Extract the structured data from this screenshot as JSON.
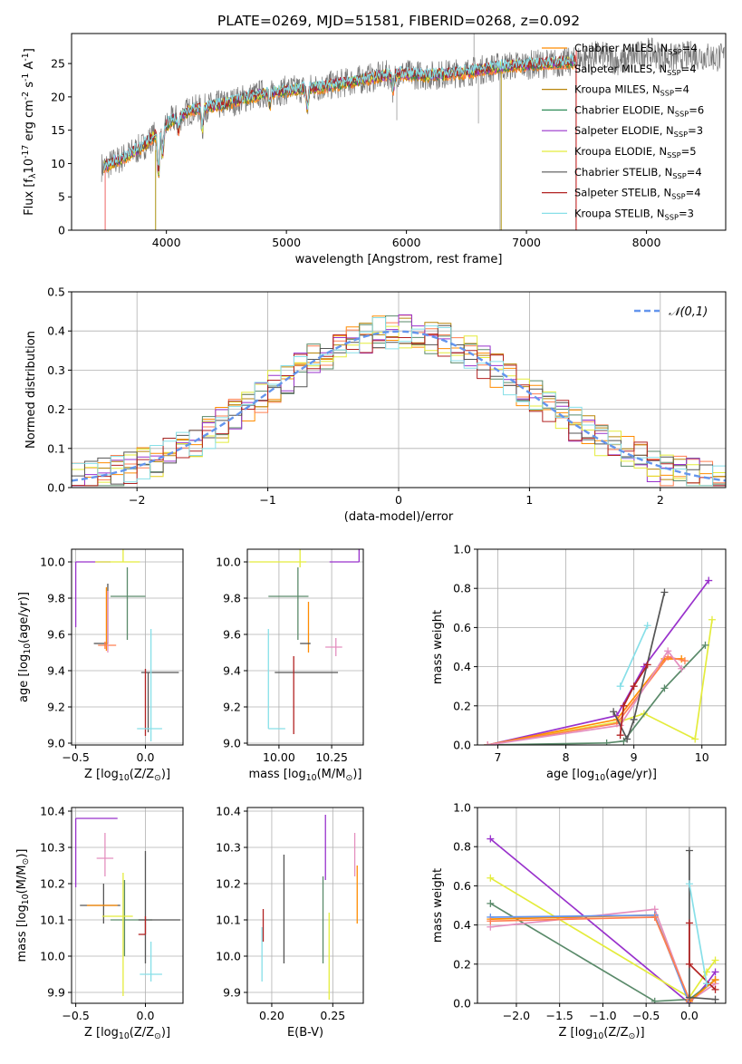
{
  "chart_data": [
    {
      "id": "spectrum",
      "type": "line",
      "title": "PLATE=0269, MJD=51581, FIBERID=0268, z=0.092",
      "xlabel": "wavelength [Angstrom, rest frame]",
      "ylabel": "Flux [f$_\\lambda$10$^{-17}$ erg cm$^{-2}$ s$^{-1}$ A$^{-1}$]",
      "xlim": [
        3210,
        8660
      ],
      "ylim": [
        0,
        29.5
      ],
      "xticks": [
        4000,
        5000,
        6000,
        7000,
        8000
      ],
      "yticks": [
        0,
        5,
        10,
        15,
        20,
        25
      ],
      "grid": false,
      "legend_position": "top-right",
      "continuum": {
        "x": [
          3480,
          3600,
          3800,
          3950,
          4050,
          4200,
          4500,
          4800,
          5000,
          5300,
          5600,
          5900,
          6200,
          6500,
          6800,
          7000,
          7200,
          7420
        ],
        "y": [
          9.5,
          10.5,
          12.5,
          15,
          16.5,
          18,
          19,
          20.5,
          21,
          21.5,
          22.5,
          23.5,
          23.2,
          23.7,
          24.6,
          24.8,
          25,
          25.3
        ]
      },
      "data_extension": {
        "x": [
          7420,
          7600,
          7800,
          8000,
          8200,
          8400,
          8600
        ],
        "y": [
          25.5,
          26.3,
          25.2,
          26.8,
          25.8,
          26.3,
          25.9
        ]
      },
      "dips": [
        {
          "x": 3934,
          "depth": 6
        },
        {
          "x": 3969,
          "depth": 4
        },
        {
          "x": 4102,
          "depth": 2
        },
        {
          "x": 4300,
          "depth": 3
        },
        {
          "x": 4861,
          "depth": 2
        },
        {
          "x": 5175,
          "depth": 3
        },
        {
          "x": 5890,
          "depth": 2.5
        }
      ],
      "spikes": [
        {
          "x": 3910,
          "y": 0
        },
        {
          "x": 5920,
          "y": 16.5
        },
        {
          "x": 6563,
          "y": 29.5
        },
        {
          "x": 6600,
          "y": 16
        },
        {
          "x": 6780,
          "y": 0
        },
        {
          "x": 7410,
          "y": 0
        }
      ],
      "series": [
        {
          "name": "Chabrier MILES, N$_{SSP}$=4",
          "color": "#ff8c00"
        },
        {
          "name": "Salpeter MILES, N$_{SSP}$=4",
          "color": "#ff7f50"
        },
        {
          "name": "Kroupa MILES, N$_{SSP}$=4",
          "color": "#b8860b"
        },
        {
          "name": "Chabrier ELODIE, N$_{SSP}$=6",
          "color": "#2e8b57"
        },
        {
          "name": "Salpeter ELODIE, N$_{SSP}$=3",
          "color": "#9932cc"
        },
        {
          "name": "Kroupa ELODIE, N$_{SSP}$=5",
          "color": "#e4ec3c"
        },
        {
          "name": "Chabrier STELIB, N$_{SSP}$=4",
          "color": "#555555"
        },
        {
          "name": "Salpeter STELIB, N$_{SSP}$=4",
          "color": "#b22222"
        },
        {
          "name": "Kroupa STELIB, N$_{SSP}$=3",
          "color": "#87dfe8"
        }
      ]
    },
    {
      "id": "residuals",
      "type": "histogram",
      "xlabel": "(data-model)/error",
      "ylabel": "Normed distribution",
      "xlim": [
        -2.5,
        2.5
      ],
      "ylim": [
        0,
        0.5
      ],
      "xticks": [
        -2,
        -1,
        0,
        1,
        2
      ],
      "yticks": [
        0.0,
        0.1,
        0.2,
        0.3,
        0.4,
        0.5
      ],
      "grid": true,
      "legend_position": "top-right",
      "reference_curve": {
        "name": "$\\mathcal{N}(0,1)$",
        "color": "#6495ed",
        "style": "dashed"
      },
      "bin_edges_range": [
        -2.5,
        2.5
      ],
      "bin_count": 50,
      "hist_colors": [
        "#ff8c00",
        "#ff7f50",
        "#b8860b",
        "#5a8a6a",
        "#9932cc",
        "#e4ec3c",
        "#555555",
        "#b22222",
        "#87dfe8"
      ]
    },
    {
      "id": "age_vs_Z",
      "type": "errorbar",
      "xlabel": "Z [log$_{10}$(Z/Z$_\\odot$)]",
      "ylabel": "age  [log$_{10}$(age/yr)]",
      "xlim": [
        -0.53,
        0.27
      ],
      "ylim": [
        8.99,
        10.07
      ],
      "xticks": [
        -0.5,
        0.0
      ],
      "yticks": [
        9.0,
        9.2,
        9.4,
        9.6,
        9.8,
        10.0
      ],
      "grid": true,
      "points": [
        {
          "color": "#9932cc",
          "x": -0.5,
          "y": 10.0,
          "xerr": [
            0.0,
            0.25
          ],
          "yerr": [
            0.36,
            0.0
          ]
        },
        {
          "color": "#e4ec3c",
          "x": -0.16,
          "y": 10.0,
          "xerr": [
            0.2,
            0.12
          ],
          "yerr": [
            0.0,
            0.07
          ]
        },
        {
          "color": "#5a8a6a",
          "x": -0.13,
          "y": 9.81,
          "xerr": [
            0.12,
            0.13
          ],
          "yerr": [
            0.24,
            0.16
          ]
        },
        {
          "color": "#555555",
          "x": -0.27,
          "y": 9.55,
          "xerr": [
            0.1,
            0.0
          ],
          "yerr": [
            0.0,
            0.33
          ]
        },
        {
          "color": "#ff8c00",
          "x": -0.28,
          "y": 9.55,
          "xerr": [
            0.0,
            0.0
          ],
          "yerr": [
            0.04,
            0.31
          ]
        },
        {
          "color": "#ff7f50",
          "x": -0.29,
          "y": 9.54,
          "xerr": [
            0.05,
            0.08
          ],
          "yerr": [
            0.02,
            0.02
          ]
        },
        {
          "color": "#e48fbf",
          "x": -0.27,
          "y": 9.54,
          "xerr": [
            0.0,
            0.0
          ],
          "yerr": [
            0.04,
            0.3
          ]
        },
        {
          "color": "#555555",
          "x": 0.02,
          "y": 9.39,
          "xerr": [
            0.05,
            0.22
          ],
          "yerr": [
            0.33,
            0.0
          ]
        },
        {
          "color": "#b22222",
          "x": 0.0,
          "y": 9.2,
          "xerr": [
            0.0,
            0.0
          ],
          "yerr": [
            0.16,
            0.21
          ]
        },
        {
          "color": "#87dfe8",
          "x": 0.04,
          "y": 9.08,
          "xerr": [
            0.1,
            0.08
          ],
          "yerr": [
            0.07,
            0.55
          ]
        }
      ]
    },
    {
      "id": "age_vs_mass",
      "type": "errorbar",
      "xlabel": "mass [log$_{10}$(M/M$_\\odot$)]",
      "ylabel": "",
      "xlim": [
        9.85,
        10.4
      ],
      "ylim": [
        8.99,
        10.07
      ],
      "xticks": [
        10.0,
        10.25
      ],
      "xticklabels": [
        "10.00",
        "10.25"
      ],
      "yticks": [
        9.0,
        9.2,
        9.4,
        9.6,
        9.8,
        10.0
      ],
      "grid": true,
      "points": [
        {
          "color": "#9932cc",
          "x": 10.38,
          "y": 10.0,
          "xerr": [
            0.14,
            0.0
          ],
          "yerr": [
            0.0,
            0.36
          ]
        },
        {
          "color": "#e4ec3c",
          "x": 10.1,
          "y": 10.0,
          "xerr": [
            0.24,
            0.03
          ],
          "yerr": [
            0.03,
            0.07
          ]
        },
        {
          "color": "#5a8a6a",
          "x": 10.09,
          "y": 9.81,
          "xerr": [
            0.14,
            0.05
          ],
          "yerr": [
            0.24,
            0.16
          ]
        },
        {
          "color": "#e48fbf",
          "x": 10.27,
          "y": 9.53,
          "xerr": [
            0.05,
            0.03
          ],
          "yerr": [
            0.05,
            0.05
          ]
        },
        {
          "color": "#ff8c00",
          "x": 10.14,
          "y": 9.55,
          "xerr": [
            0.0,
            0.0
          ],
          "yerr": [
            0.05,
            0.23
          ]
        },
        {
          "color": "#555555",
          "x": 10.15,
          "y": 9.55,
          "xerr": [
            0.05,
            0.0
          ],
          "yerr": [
            0.0,
            0.0
          ]
        },
        {
          "color": "#555555",
          "x": 10.1,
          "y": 9.39,
          "xerr": [
            0.12,
            0.18
          ],
          "yerr": [
            0.0,
            0.0
          ]
        },
        {
          "color": "#b22222",
          "x": 10.07,
          "y": 9.29,
          "xerr": [
            0.0,
            0.0
          ],
          "yerr": [
            0.24,
            0.19
          ]
        },
        {
          "color": "#87dfe8",
          "x": 9.95,
          "y": 9.08,
          "xerr": [
            0.0,
            0.08
          ],
          "yerr": [
            0.0,
            0.55
          ]
        }
      ]
    },
    {
      "id": "weight_vs_age",
      "type": "line",
      "xlabel": "age  [log$_{10}$(age/yr)]",
      "ylabel": "mass weight",
      "xlim": [
        6.7,
        10.35
      ],
      "ylim": [
        0,
        1.0
      ],
      "xticks": [
        7,
        8,
        9,
        10
      ],
      "yticks": [
        0.0,
        0.2,
        0.4,
        0.6,
        0.8,
        1.0
      ],
      "grid": true,
      "series": [
        {
          "color": "#9932cc",
          "x": [
            6.85,
            8.75,
            9.15,
            10.1
          ],
          "y": [
            0.0,
            0.15,
            0.4,
            0.84
          ]
        },
        {
          "color": "#e4ec3c",
          "x": [
            6.85,
            8.8,
            9.15,
            9.9,
            10.15
          ],
          "y": [
            0.0,
            0.12,
            0.16,
            0.03,
            0.64
          ]
        },
        {
          "color": "#5a8a6a",
          "x": [
            6.85,
            8.6,
            8.85,
            9.45,
            10.05
          ],
          "y": [
            0.0,
            0.01,
            0.02,
            0.29,
            0.51
          ]
        },
        {
          "color": "#ff8c00",
          "x": [
            6.85,
            8.75,
            9.45,
            9.7
          ],
          "y": [
            0.0,
            0.13,
            0.44,
            0.44
          ]
        },
        {
          "color": "#ff7f50",
          "x": [
            6.85,
            8.75,
            9.5,
            9.75
          ],
          "y": [
            0.0,
            0.11,
            0.45,
            0.43
          ]
        },
        {
          "color": "#e48fbf",
          "x": [
            6.85,
            8.8,
            9.5,
            9.7
          ],
          "y": [
            0.0,
            0.1,
            0.48,
            0.39
          ]
        },
        {
          "color": "#555555",
          "x": [
            8.7,
            8.9,
            9.0,
            9.45
          ],
          "y": [
            0.17,
            0.03,
            0.13,
            0.78
          ]
        },
        {
          "color": "#b22222",
          "x": [
            8.8,
            8.85,
            9.0,
            9.2
          ],
          "y": [
            0.05,
            0.2,
            0.3,
            0.41
          ]
        },
        {
          "color": "#87dfe8",
          "x": [
            8.8,
            9.2
          ],
          "y": [
            0.3,
            0.61
          ]
        }
      ]
    },
    {
      "id": "mass_vs_Z",
      "type": "errorbar",
      "xlabel": "Z [log$_{10}$(Z/Z$_\\odot$)]",
      "ylabel": "mass [log$_{10}$(M/M$_\\odot$)]",
      "xlim": [
        -0.53,
        0.27
      ],
      "ylim": [
        9.87,
        10.41
      ],
      "xticks": [
        -0.5,
        0.0
      ],
      "yticks": [
        9.9,
        10.0,
        10.1,
        10.2,
        10.3,
        10.4
      ],
      "grid": true,
      "points": [
        {
          "color": "#9932cc",
          "x": -0.5,
          "y": 10.38,
          "xerr": [
            0.0,
            0.3
          ],
          "yerr": [
            0.19,
            0.0
          ]
        },
        {
          "color": "#e48fbf",
          "x": -0.29,
          "y": 10.27,
          "xerr": [
            0.06,
            0.06
          ],
          "yerr": [
            0.05,
            0.07
          ]
        },
        {
          "color": "#555555",
          "x": -0.3,
          "y": 10.14,
          "xerr": [
            0.17,
            0.12
          ],
          "yerr": [
            0.05,
            0.06
          ]
        },
        {
          "color": "#ff8c00",
          "x": -0.3,
          "y": 10.14,
          "xerr": [
            0.12,
            0.1
          ],
          "yerr": [
            0.0,
            0.0
          ]
        },
        {
          "color": "#5a8a6a",
          "x": -0.15,
          "y": 10.1,
          "xerr": [
            0.1,
            0.2
          ],
          "yerr": [
            0.1,
            0.11
          ]
        },
        {
          "color": "#e4ec3c",
          "x": -0.16,
          "y": 10.11,
          "xerr": [
            0.15,
            0.07
          ],
          "yerr": [
            0.22,
            0.12
          ]
        },
        {
          "color": "#555555",
          "x": 0.0,
          "y": 10.1,
          "xerr": [
            0.05,
            0.25
          ],
          "yerr": [
            0.12,
            0.19
          ]
        },
        {
          "color": "#b22222",
          "x": 0.0,
          "y": 10.06,
          "xerr": [
            0.05,
            0.0
          ],
          "yerr": [
            0.0,
            0.05
          ]
        },
        {
          "color": "#87dfe8",
          "x": 0.04,
          "y": 9.95,
          "xerr": [
            0.08,
            0.08
          ],
          "yerr": [
            0.02,
            0.09
          ]
        }
      ]
    },
    {
      "id": "mass_vs_EBV",
      "type": "errorbar",
      "xlabel": "E(B-V)",
      "ylabel": "",
      "xlim": [
        0.18,
        0.275
      ],
      "ylim": [
        9.87,
        10.41
      ],
      "xticks": [
        0.2,
        0.25
      ],
      "xticklabels": [
        "0.20",
        "0.25"
      ],
      "yticks": [
        9.9,
        10.0,
        10.1,
        10.2,
        10.3,
        10.4
      ],
      "grid": true,
      "points": [
        {
          "color": "#87dfe8",
          "x": 0.192,
          "y": 10.0,
          "xerr": [
            0,
            0
          ],
          "yerr": [
            0.07,
            0.08
          ]
        },
        {
          "color": "#b22222",
          "x": 0.193,
          "y": 10.07,
          "xerr": [
            0,
            0
          ],
          "yerr": [
            0.03,
            0.06
          ]
        },
        {
          "color": "#555555",
          "x": 0.21,
          "y": 10.13,
          "xerr": [
            0,
            0
          ],
          "yerr": [
            0.15,
            0.15
          ]
        },
        {
          "color": "#5a8a6a",
          "x": 0.242,
          "y": 10.1,
          "xerr": [
            0,
            0
          ],
          "yerr": [
            0.12,
            0.12
          ]
        },
        {
          "color": "#9932cc",
          "x": 0.244,
          "y": 10.3,
          "xerr": [
            0,
            0
          ],
          "yerr": [
            0.09,
            0.09
          ]
        },
        {
          "color": "#e4ec3c",
          "x": 0.247,
          "y": 10.0,
          "xerr": [
            0,
            0
          ],
          "yerr": [
            0.12,
            0.12
          ]
        },
        {
          "color": "#e48fbf",
          "x": 0.268,
          "y": 10.28,
          "xerr": [
            0,
            0
          ],
          "yerr": [
            0.06,
            0.06
          ]
        },
        {
          "color": "#ff8c00",
          "x": 0.27,
          "y": 10.17,
          "xerr": [
            0,
            0
          ],
          "yerr": [
            0.08,
            0.08
          ]
        }
      ]
    },
    {
      "id": "weight_vs_Z",
      "type": "line",
      "xlabel": "Z [log$_{10}$(Z/Z$_\\odot$)]",
      "ylabel": "mass weight",
      "xlim": [
        -2.45,
        0.42
      ],
      "ylim": [
        0,
        1.0
      ],
      "xticks": [
        -2.0,
        -1.5,
        -1.0,
        -0.5,
        0.0
      ],
      "yticks": [
        0.0,
        0.2,
        0.4,
        0.6,
        0.8,
        1.0
      ],
      "grid": true,
      "series": [
        {
          "color": "#9932cc",
          "x": [
            -2.3,
            0.0,
            0.2,
            0.3
          ],
          "y": [
            0.84,
            0.0,
            0.1,
            0.16
          ]
        },
        {
          "color": "#e4ec3c",
          "x": [
            -2.3,
            0.0,
            0.2,
            0.3
          ],
          "y": [
            0.64,
            0.03,
            0.16,
            0.22
          ]
        },
        {
          "color": "#5a8a6a",
          "x": [
            -2.3,
            -0.4,
            0.0,
            0.3
          ],
          "y": [
            0.51,
            0.01,
            0.02,
            0.12
          ]
        },
        {
          "color": "#e48fbf",
          "x": [
            -2.3,
            -0.4,
            0.0,
            0.3
          ],
          "y": [
            0.39,
            0.48,
            0.01,
            0.1
          ]
        },
        {
          "color": "#ff8c00",
          "x": [
            -2.3,
            -0.4,
            0.0,
            0.3
          ],
          "y": [
            0.43,
            0.45,
            0.01,
            0.12
          ]
        },
        {
          "color": "#6495ed",
          "x": [
            -2.3,
            -0.4,
            0.0
          ],
          "y": [
            0.44,
            0.45,
            0.0
          ]
        },
        {
          "color": "#ff7f50",
          "x": [
            -2.3,
            -0.4,
            0.0
          ],
          "y": [
            0.42,
            0.44,
            0.02
          ]
        },
        {
          "color": "#555555",
          "x": [
            0.0,
            0.0,
            0.3
          ],
          "y": [
            0.78,
            0.03,
            0.02
          ]
        },
        {
          "color": "#b22222",
          "x": [
            0.0,
            0.0,
            0.3
          ],
          "y": [
            0.41,
            0.2,
            0.07
          ]
        },
        {
          "color": "#87dfe8",
          "x": [
            0.0,
            0.2
          ],
          "y": [
            0.61,
            0.1
          ]
        }
      ]
    }
  ]
}
